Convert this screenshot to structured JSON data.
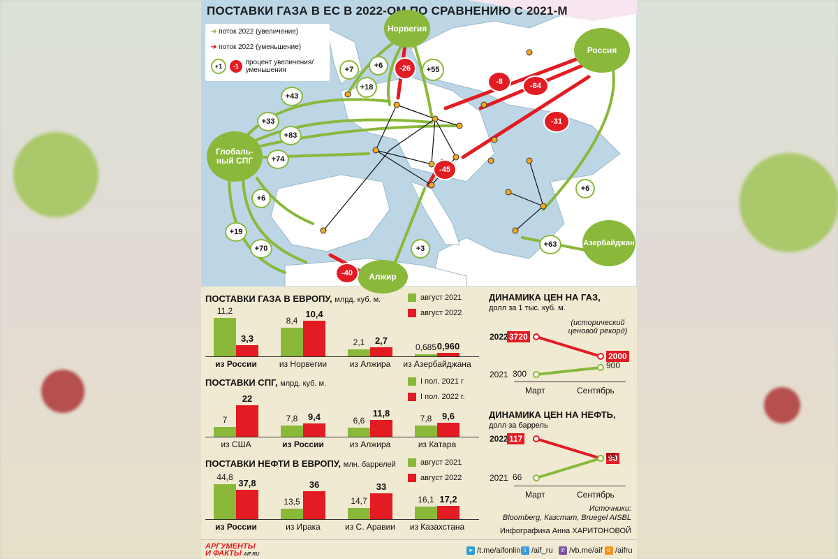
{
  "map": {
    "title": "ПОСТАВКИ ГАЗА В ЕС В 2022-ОМ ПО СРАВНЕНИЮ С 2021-М",
    "legend": {
      "increase": "поток 2022 (увеличение)",
      "decrease": "поток 2022 (уменьшение)",
      "percent_line1": "процент увеличения/",
      "percent_line2": "уменьшения",
      "sample_plus": "+1",
      "sample_minus": "-1"
    },
    "sources": {
      "norway": "Норвегия",
      "russia": "Россия",
      "lng_line1": "Глобаль-",
      "lng_line2": "ный СПГ",
      "azerbaijan": "Азербайджан",
      "algeria": "Алжир"
    },
    "changes": [
      {
        "label": "+7",
        "type": "increase"
      },
      {
        "label": "+6",
        "type": "increase"
      },
      {
        "label": "-26",
        "type": "decrease"
      },
      {
        "label": "+55",
        "type": "increase"
      },
      {
        "label": "+18",
        "type": "increase"
      },
      {
        "label": "+43",
        "type": "increase"
      },
      {
        "label": "+33",
        "type": "increase"
      },
      {
        "label": "+83",
        "type": "increase"
      },
      {
        "label": "+74",
        "type": "increase"
      },
      {
        "label": "+6",
        "type": "increase"
      },
      {
        "label": "+19",
        "type": "increase"
      },
      {
        "label": "+70",
        "type": "increase"
      },
      {
        "label": "-40",
        "type": "decrease"
      },
      {
        "label": "+3",
        "type": "increase"
      },
      {
        "label": "-45",
        "type": "decrease"
      },
      {
        "label": "-8",
        "type": "decrease"
      },
      {
        "label": "-84",
        "type": "decrease"
      },
      {
        "label": "-31",
        "type": "decrease"
      },
      {
        "label": "+6",
        "type": "increase"
      },
      {
        "label": "+63",
        "type": "increase"
      }
    ]
  },
  "colors": {
    "green": "#8ab83b",
    "red": "#e31b23",
    "sea": "#bcd6e6",
    "land": "#ffffff",
    "background": "#f1ead2"
  },
  "chart_data": [
    {
      "type": "bar",
      "title": "ПОСТАВКИ ГАЗА В ЕВРОПУ,",
      "unit": "млрд. куб. м.",
      "categories": [
        "из России",
        "из Норвегии",
        "из Алжира",
        "из Азербайджана"
      ],
      "category_labels": [
        "из России",
        "из Норвегии",
        "из Алжира",
        "из Азербайджана"
      ],
      "series": [
        {
          "name": "август 2021",
          "values": [
            11.2,
            8.4,
            2.1,
            0.685
          ],
          "labels": [
            "11,2",
            "8,4",
            "2,1",
            "0,685"
          ]
        },
        {
          "name": "август 2022",
          "values": [
            3.3,
            10.4,
            2.7,
            0.96
          ],
          "labels": [
            "3,3",
            "10,4",
            "2,7",
            "0,960"
          ]
        }
      ]
    },
    {
      "type": "bar",
      "title": "ПОСТАВКИ СПГ,",
      "unit": "млрд. куб. м.",
      "categories": [
        "из США",
        "из России",
        "из Алжира",
        "из Катара"
      ],
      "category_labels": [
        "из США",
        "из России",
        "из Алжира",
        "из Катара"
      ],
      "series": [
        {
          "name": "I пол. 2021 г",
          "values": [
            7,
            7.8,
            6.6,
            7.8
          ],
          "labels": [
            "7",
            "7,8",
            "6,6",
            "7,8"
          ]
        },
        {
          "name": "I пол. 2022 г.",
          "values": [
            22,
            9.4,
            11.8,
            9.6
          ],
          "labels": [
            "22",
            "9,4",
            "11,8",
            "9,6"
          ]
        }
      ]
    },
    {
      "type": "bar",
      "title": "ПОСТАВКИ НЕФТИ В ЕВРОПУ,",
      "unit": "млн. баррелей",
      "categories": [
        "из России",
        "из Ирака",
        "из С. Аравии",
        "из Казахстана"
      ],
      "category_labels": [
        "из России",
        "из Ирака",
        "из С. Аравии",
        "из Казахстана"
      ],
      "series": [
        {
          "name": "август 2021",
          "values": [
            44.8,
            13.5,
            14.7,
            16.1
          ],
          "labels": [
            "44,8",
            "13,5",
            "14,7",
            "16,1"
          ]
        },
        {
          "name": "август 2022",
          "values": [
            37.8,
            36,
            33,
            17.2
          ],
          "labels": [
            "37,8",
            "36",
            "33",
            "17,2"
          ]
        }
      ]
    },
    {
      "type": "line",
      "title": "ДИНАМИКА ЦЕН НА ГАЗ,",
      "unit": "долл за 1 тыс. куб. м.",
      "x": [
        "Март",
        "Сентябрь"
      ],
      "series": [
        {
          "name": "2022",
          "values": [
            3720,
            2000
          ],
          "labels": [
            "3720",
            "2000"
          ]
        },
        {
          "name": "2021",
          "values": [
            300,
            900
          ],
          "labels": [
            "300",
            "900"
          ]
        }
      ],
      "annotation_line1": "(исторический",
      "annotation_line2": "ценовой рекорд)"
    },
    {
      "type": "line",
      "title": "ДИНАМИКА ЦЕН НА НЕФТЬ,",
      "unit": "долл за баррель",
      "x": [
        "Март",
        "Сентябрь"
      ],
      "series": [
        {
          "name": "2022",
          "values": [
            117,
            90
          ],
          "labels": [
            "117",
            "90"
          ]
        },
        {
          "name": "2021",
          "values": [
            66,
            89
          ],
          "labels": [
            "66",
            "89"
          ]
        }
      ]
    }
  ],
  "sources_block": {
    "label": "Источники:",
    "list": "Bloomberg, Казстат, Bruegel AISBL",
    "credit": "Инфографика Анна ХАРИТОНОВОЙ"
  },
  "footer": {
    "logo_line1": "АРГУМЕНТЫ",
    "logo_line2": "И ФАКТЫ",
    "logo_site": "AIF.RU",
    "links": [
      {
        "icon": "telegram-icon",
        "text": "/t.me/aifonline"
      },
      {
        "icon": "twitter-icon",
        "text": "/aif_ru"
      },
      {
        "icon": "viber-icon",
        "text": "/vb.me/aif"
      },
      {
        "icon": "odnoklassniki-icon",
        "text": "/aifru"
      }
    ]
  }
}
